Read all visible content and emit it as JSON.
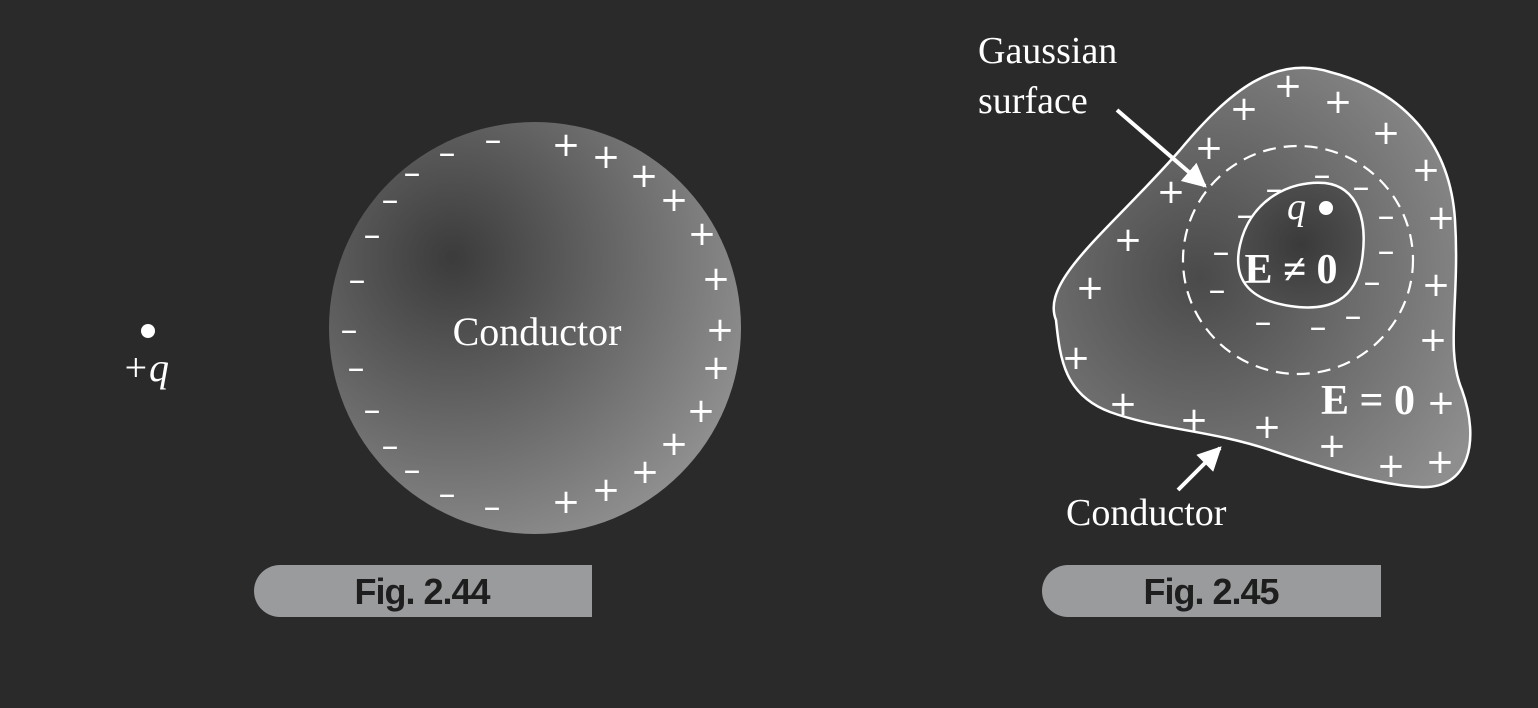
{
  "fig244": {
    "caption": "Fig. 2.44",
    "charge_label": "+q",
    "conductor_label": "Conductor",
    "left_sign": "–",
    "right_sign": "+"
  },
  "fig245": {
    "caption": "Fig. 2.45",
    "gaussian_label_line1": "Gaussian",
    "gaussian_label_line2": "surface",
    "charge_label": "q",
    "cavity_field": "E ≠ 0",
    "conductor_field": "E = 0",
    "conductor_label": "Conductor",
    "outer_sign": "+",
    "inner_sign": "–"
  },
  "colors": {
    "background": "#2a2a2a",
    "caption_tab": "#9a9b9d",
    "foreground": "#ffffff"
  }
}
